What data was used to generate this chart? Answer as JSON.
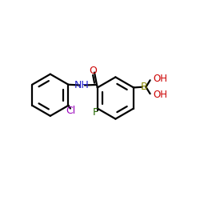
{
  "background_color": "#ffffff",
  "figure_size": [
    2.5,
    2.5
  ],
  "dpi": 100,
  "bond_color": "#000000",
  "bond_lw": 1.6,
  "colors": {
    "Cl": "#9900bb",
    "N": "#2222cc",
    "O": "#cc0000",
    "F": "#226600",
    "B": "#888800",
    "OH": "#cc0000",
    "C": "#000000"
  }
}
